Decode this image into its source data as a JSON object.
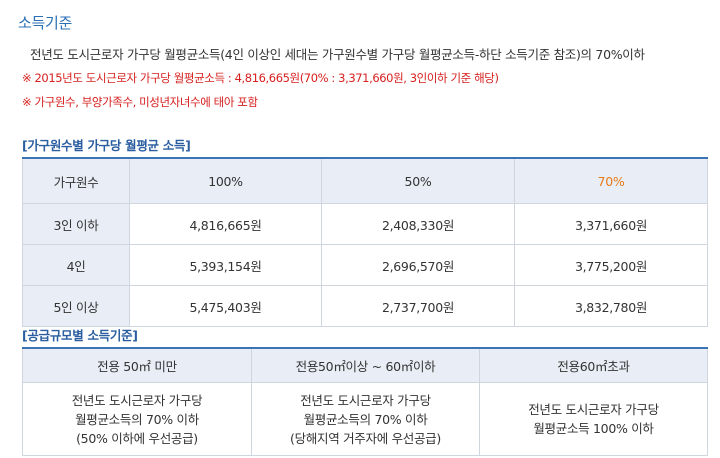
{
  "title": "소득기준",
  "description": "전년도 도시근로자 가구당 월평균소득(4인 이상인 세대는 가구원수별 가구당 월평균소득-하단 소득기준 참조)의 70%이하",
  "notes": [
    "※ 2015년도 도시근로자 가구당 월평균소득 : 4,816,665원(70% : 3,371,660원, 3인이하 기준 해당)",
    "※ 가구원수, 부양가족수, 미성년자녀수에 태아 포함"
  ],
  "income_table": {
    "label": "[가구원수별 가구당 월평균 소득]",
    "headers": [
      "가구원수",
      "100%",
      "50%",
      "70%"
    ],
    "rows": [
      [
        "3인 이하",
        "4,816,665원",
        "2,408,330원",
        "3,371,660원"
      ],
      [
        "4인",
        "5,393,154원",
        "2,696,570원",
        "3,775,200원"
      ],
      [
        "5인 이상",
        "5,475,403원",
        "2,737,700원",
        "3,832,780원"
      ]
    ]
  },
  "size_table": {
    "label": "[공급규모별 소득기준]",
    "headers": [
      "전용 50㎡ 미만",
      "전용50㎡이상 ~ 60㎡이하",
      "전용60㎡초과"
    ],
    "cells": [
      [
        "전년도 도시근로자 가구당",
        "월평균소득의 70% 이하",
        "(50% 이하에 우선공급)"
      ],
      [
        "전년도 도시근로자 가구당",
        "월평균소득의 70% 이하",
        "(당해지역 거주자에 우선공급)"
      ],
      [
        "전년도 도시근로자 가구당",
        "월평균소득 100% 이하"
      ]
    ]
  },
  "colors": {
    "title": "#2a6fb6",
    "note": "#d6201f",
    "highlight": "#e67a16",
    "header_bg": "#e9eef6"
  }
}
